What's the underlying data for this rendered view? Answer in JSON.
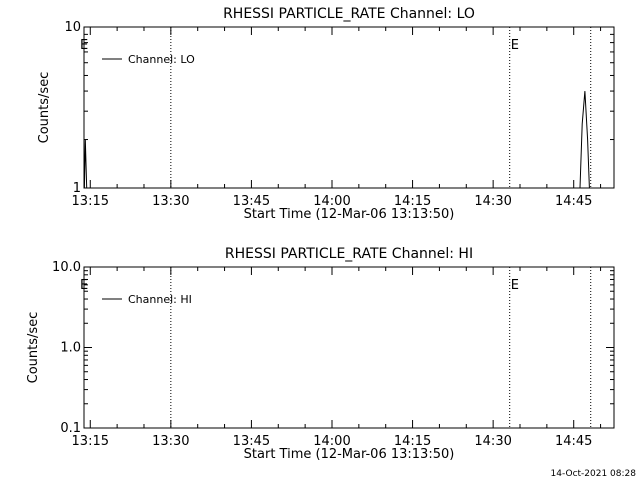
{
  "footer": {
    "timestamp": "14-Oct-2021 08:28"
  },
  "chart_data": [
    {
      "type": "line",
      "title": "RHESSI PARTICLE_RATE Channel: LO",
      "xlabel": "Start Time (12-Mar-06 13:13:50)",
      "ylabel": "Counts/sec",
      "yscale": "log",
      "xlim": [
        "13:13:50",
        "14:52:30"
      ],
      "ylim": [
        1,
        10
      ],
      "x_ticks": [
        "13:15",
        "13:30",
        "13:45",
        "14:00",
        "14:15",
        "14:30",
        "14:45"
      ],
      "y_ticks": [
        "1",
        "10"
      ],
      "series": [
        {
          "name": "Channel: LO",
          "x": [
            "13:13:55",
            "13:14:05",
            "13:14:20",
            "13:14:35",
            "14:46:10",
            "14:46:35",
            "14:47:05",
            "14:47:35",
            "14:47:55"
          ],
          "y": [
            1,
            2.0,
            1,
            1,
            1,
            2.5,
            4.0,
            2.0,
            1
          ]
        }
      ],
      "vlines": [
        {
          "x": "13:30:00",
          "label": ""
        },
        {
          "x": "14:33:05",
          "label": "E"
        },
        {
          "x": "14:48:10",
          "label": ""
        }
      ],
      "edge_marker": "E",
      "legend": "top-left"
    },
    {
      "type": "line",
      "title": "RHESSI PARTICLE_RATE Channel: HI",
      "xlabel": "Start Time (12-Mar-06 13:13:50)",
      "ylabel": "Counts/sec",
      "yscale": "log",
      "xlim": [
        "13:13:50",
        "14:52:30"
      ],
      "ylim": [
        0.1,
        10
      ],
      "x_ticks": [
        "13:15",
        "13:30",
        "13:45",
        "14:00",
        "14:15",
        "14:30",
        "14:45"
      ],
      "y_ticks": [
        "0.1",
        "1.0",
        "10.0"
      ],
      "series": [
        {
          "name": "Channel: HI",
          "x": [],
          "y": []
        }
      ],
      "vlines": [
        {
          "x": "13:30:00",
          "label": ""
        },
        {
          "x": "14:33:05",
          "label": "E"
        },
        {
          "x": "14:48:10",
          "label": ""
        }
      ],
      "edge_marker": "E",
      "legend": "top-left"
    }
  ]
}
